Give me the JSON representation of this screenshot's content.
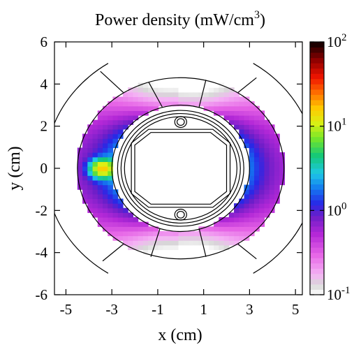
{
  "chart_data": {
    "type": "heatmap",
    "title_main": "Power density (mW/cm",
    "title_sup": "3",
    "title_end": ")",
    "xlabel": "x (cm)",
    "ylabel": "y (cm)",
    "xlim": [
      -5.5,
      5.3
    ],
    "ylim": [
      -6,
      6
    ],
    "xticks": [
      "-5",
      "-3",
      "-1",
      "1",
      "3",
      "5"
    ],
    "xtick_values": [
      -5,
      -3,
      -1,
      1,
      3,
      5
    ],
    "yticks": [
      "6",
      "4",
      "2",
      "0",
      "-2",
      "-4",
      "-6"
    ],
    "ytick_values": [
      6,
      4,
      2,
      0,
      -2,
      -4,
      -6
    ],
    "colorbar": {
      "scale": "log",
      "range": [
        0.1,
        100
      ],
      "labels": [
        {
          "base": "10",
          "exp": "2",
          "value": 100
        },
        {
          "base": "10",
          "exp": "1",
          "value": 10
        },
        {
          "base": "10",
          "exp": "0",
          "value": 1
        },
        {
          "base": "10",
          "exp": "-1",
          "value": 0.1
        }
      ]
    },
    "annulus": {
      "outer_rx": 4.5,
      "outer_ry": 4.3,
      "inner_r": 3.0
    },
    "peak": {
      "x": -3.4,
      "y": 0,
      "value": 15
    },
    "grid": false
  }
}
